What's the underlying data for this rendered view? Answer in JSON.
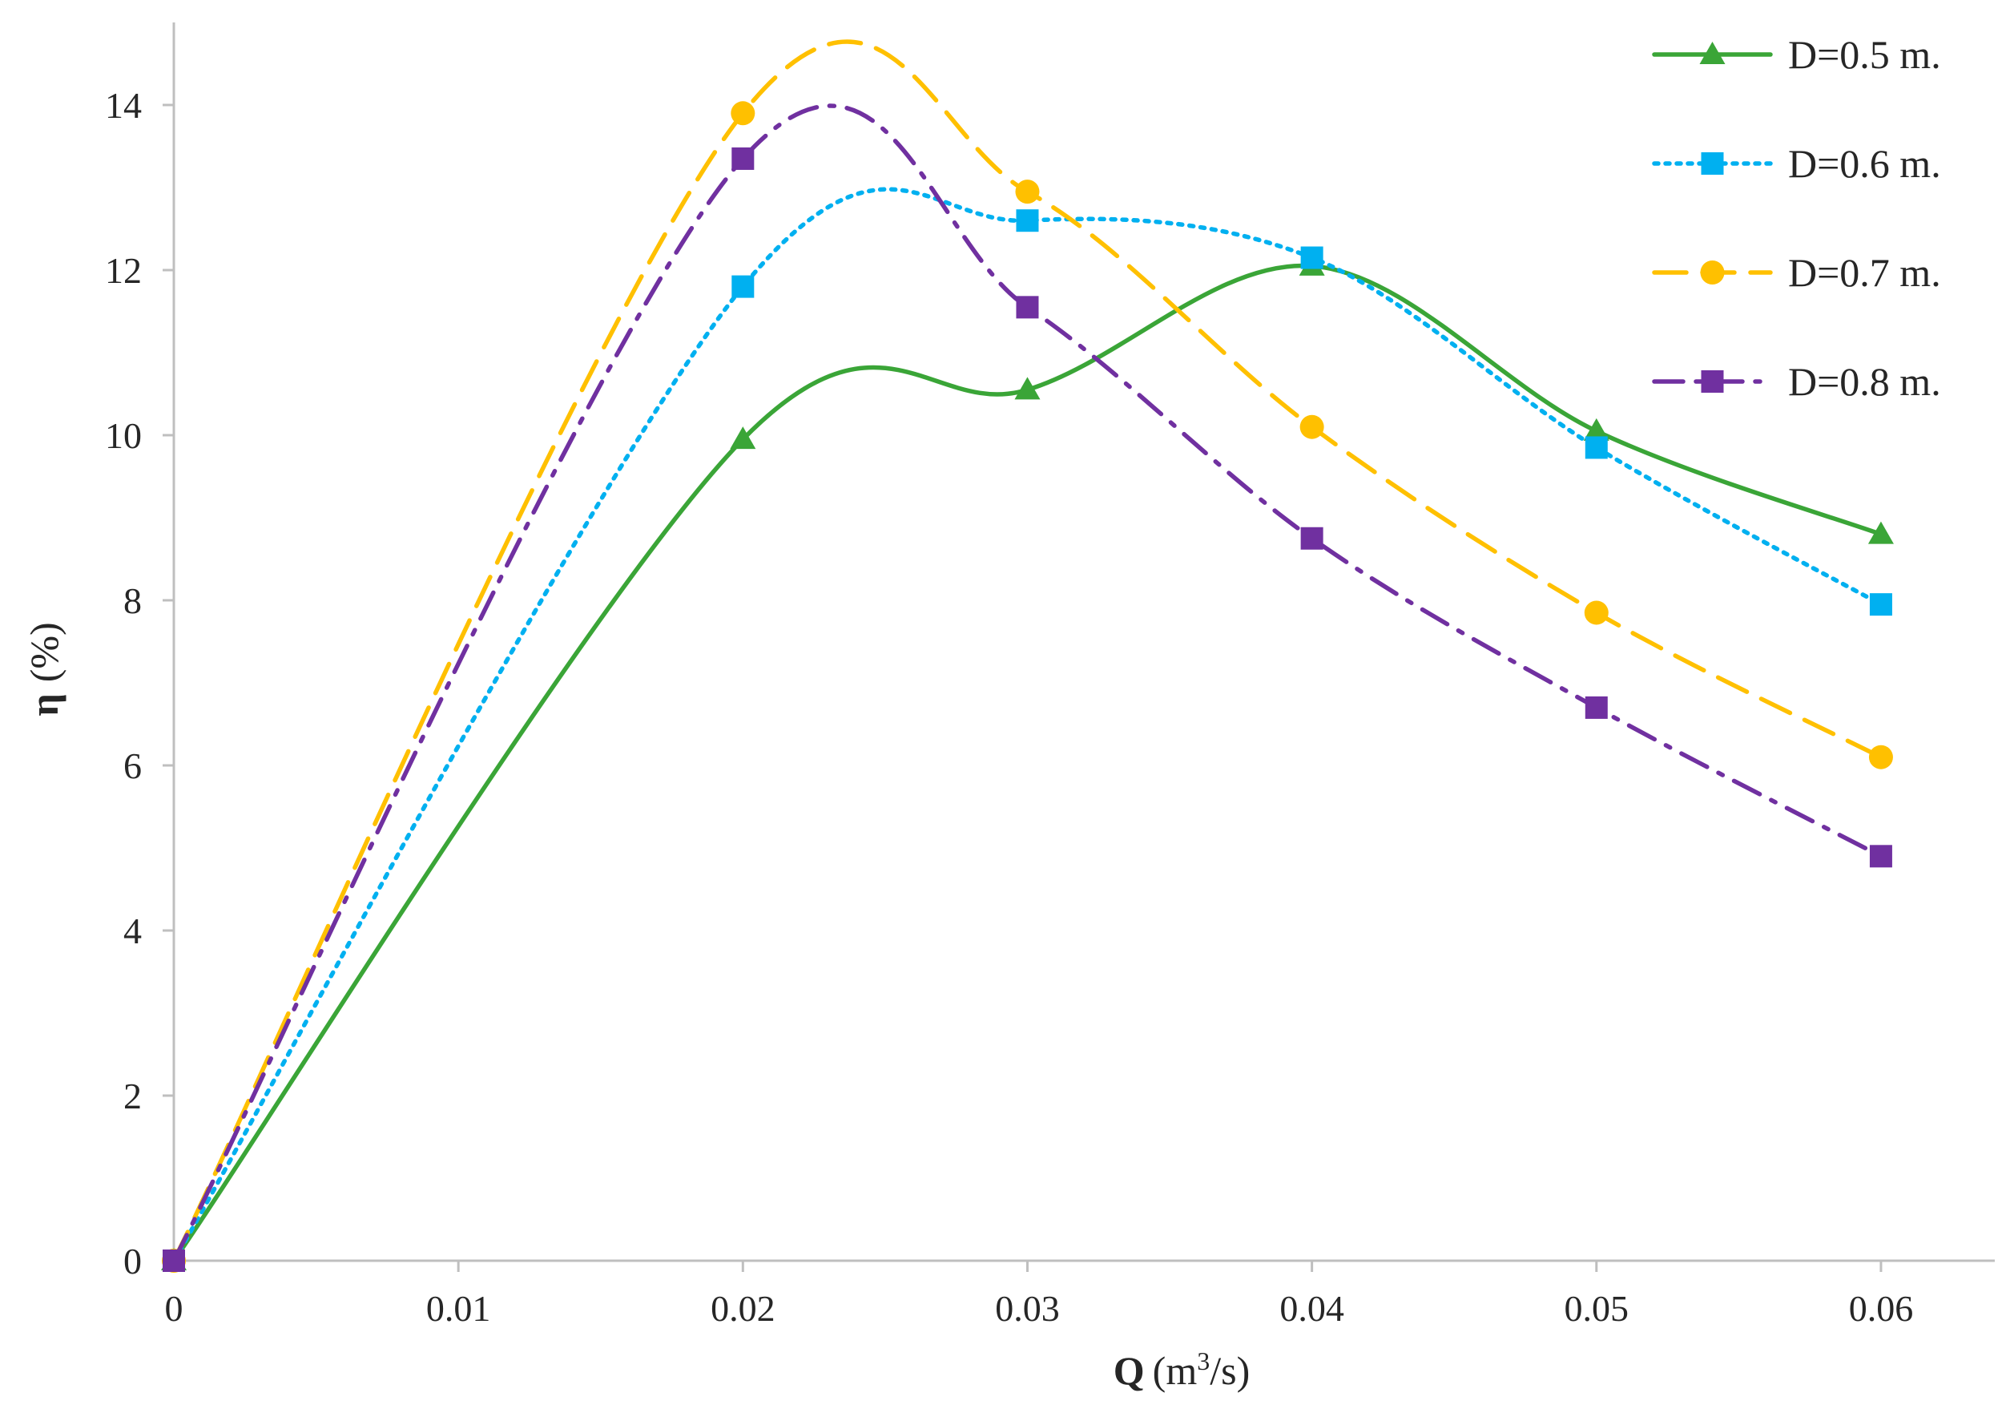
{
  "chart_data": {
    "type": "line",
    "title": "",
    "xlabel": {
      "symbol": "Q",
      "unit_pre": "(m",
      "unit_sup": "3",
      "unit_post": "/s)"
    },
    "ylabel": {
      "symbol": "η",
      "unit": "(%)"
    },
    "xlim": [
      0,
      0.064
    ],
    "ylim": [
      0,
      15
    ],
    "grid": false,
    "legend_position": "top-right",
    "x_ticks": [
      0,
      0.01,
      0.02,
      0.03,
      0.04,
      0.05,
      0.06
    ],
    "x_tick_labels": [
      "0",
      "0.01",
      "0.02",
      "0.03",
      "0.04",
      "0.05",
      "0.06"
    ],
    "y_ticks": [
      0,
      2,
      4,
      6,
      8,
      10,
      12,
      14
    ],
    "y_tick_labels": [
      "0",
      "2",
      "4",
      "6",
      "8",
      "10",
      "12",
      "14"
    ],
    "x": [
      0,
      0.02,
      0.03,
      0.04,
      0.05,
      0.06
    ],
    "series": [
      {
        "name": "D=0.5 m.",
        "values": [
          0,
          9.95,
          10.55,
          12.05,
          10.05,
          8.8
        ],
        "color": "#3aa537",
        "dash": "solid",
        "marker": "triangle"
      },
      {
        "name": "D=0.6 m.",
        "values": [
          0,
          11.8,
          12.6,
          12.15,
          9.85,
          7.95
        ],
        "color": "#00b0f0",
        "dash": "dotted",
        "marker": "square"
      },
      {
        "name": "D=0.7 m.",
        "values": [
          0,
          13.9,
          12.95,
          10.1,
          7.85,
          6.1
        ],
        "color": "#ffc000",
        "dash": "dashed",
        "marker": "circle"
      },
      {
        "name": "D=0.8 m.",
        "values": [
          0,
          13.35,
          11.55,
          8.75,
          6.7,
          4.9
        ],
        "color": "#7030a0",
        "dash": "dashdot",
        "marker": "square"
      }
    ]
  }
}
